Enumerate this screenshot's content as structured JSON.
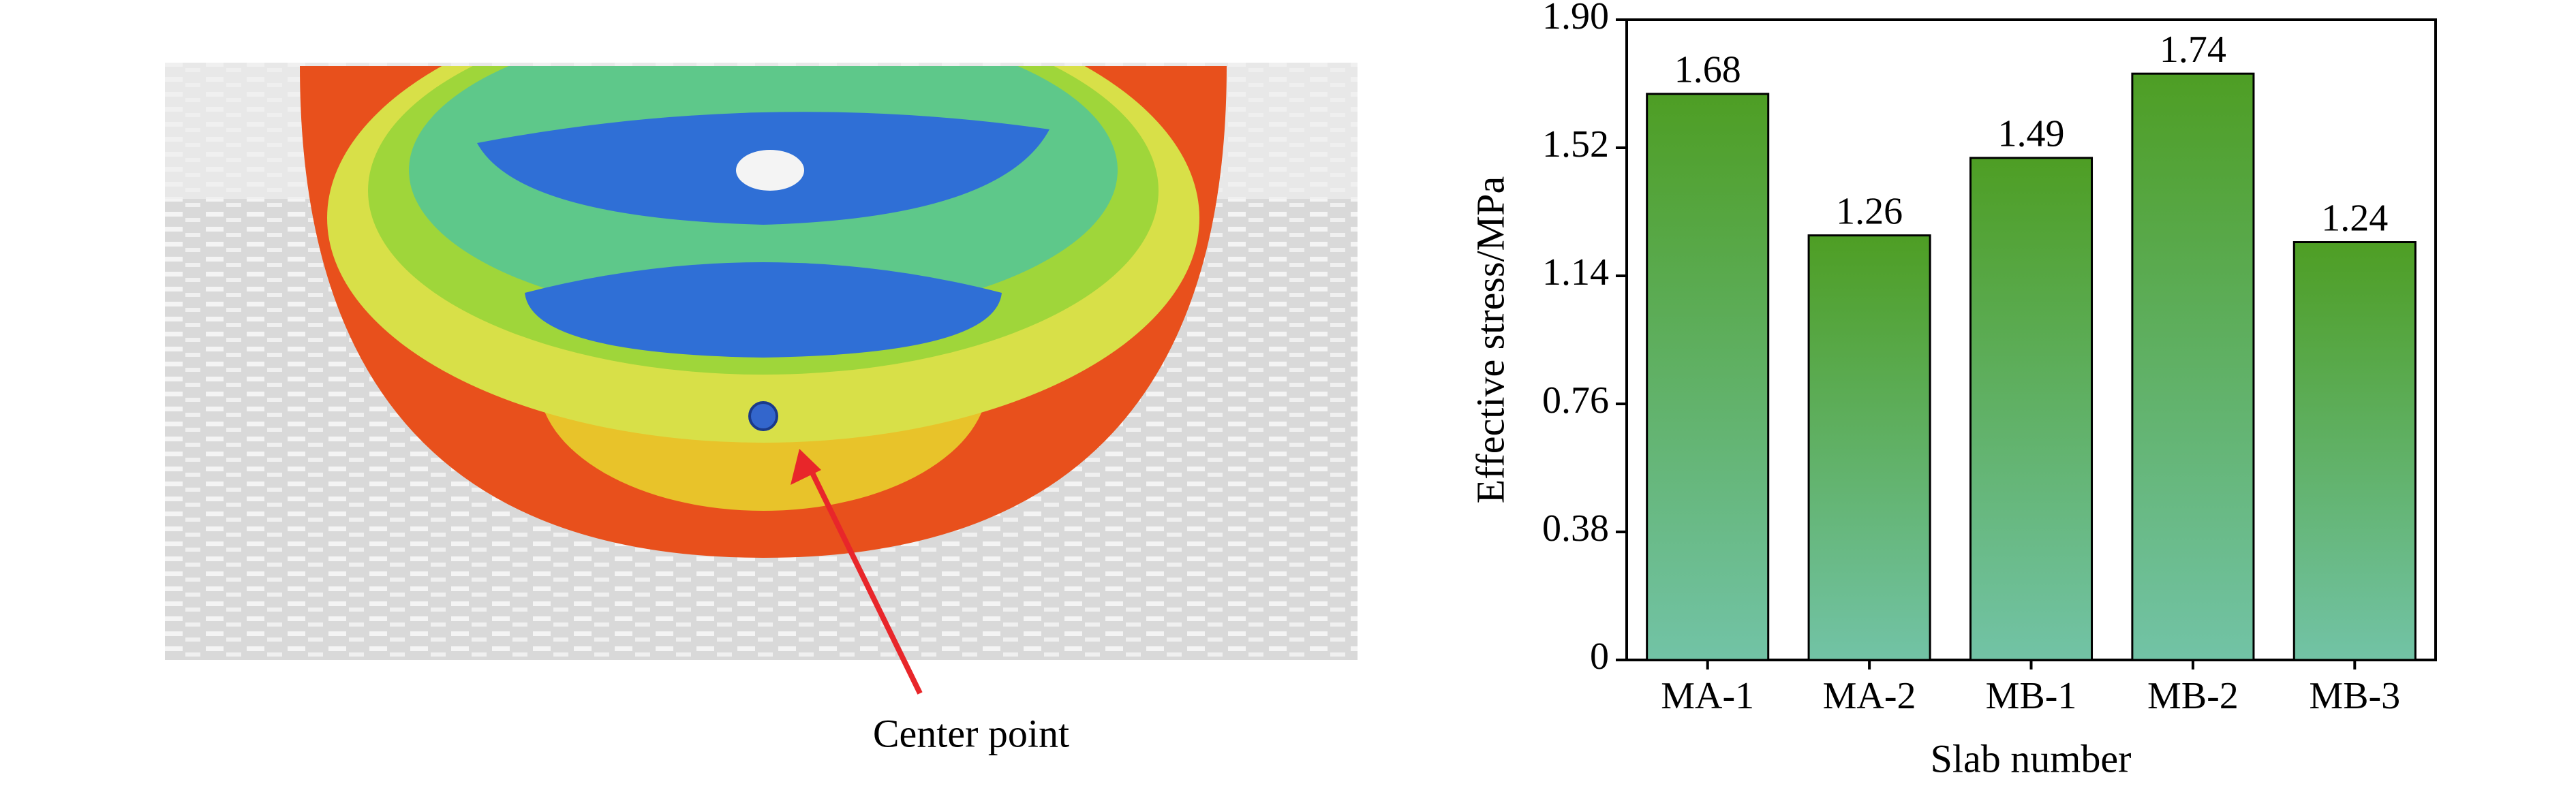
{
  "annotation": "Center point",
  "chart_data": {
    "type": "bar",
    "y_label": "Effective stress/MPa",
    "x_label": "Slab number",
    "categories": [
      "MA-1",
      "MA-2",
      "MB-1",
      "MB-2",
      "MB-3"
    ],
    "values": [
      1.68,
      1.26,
      1.49,
      1.74,
      1.24
    ],
    "color": "#4e9e24",
    "ylim": [
      0,
      1.9
    ],
    "yticks": [
      0,
      0.38,
      0.76,
      1.14,
      1.52,
      {
        "value": 1.9,
        "label": "1.90"
      }
    ]
  }
}
